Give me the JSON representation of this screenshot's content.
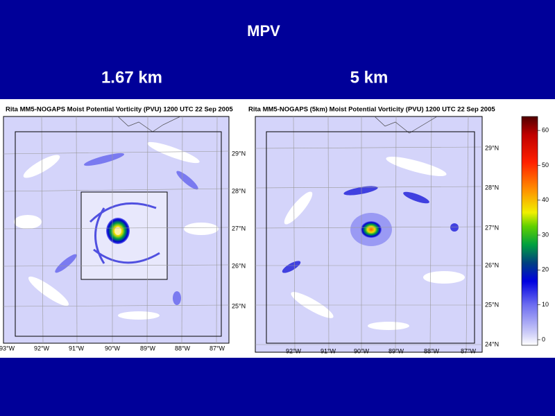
{
  "title": "MPV",
  "panels": [
    {
      "subtitle": "1.67 km",
      "plot_title": "Rita MM5-NOGAPS Moist Potential Vorticity (PVU) 1200 UTC 22 Sep 2005",
      "lat_labels": [
        "29°N",
        "28°N",
        "27°N",
        "26°N",
        "25°N"
      ],
      "lon_labels": [
        "93°W",
        "92°W",
        "91°W",
        "90°W",
        "89°W",
        "88°W",
        "87°W"
      ]
    },
    {
      "subtitle": "5 km",
      "plot_title": "Rita MM5-NOGAPS (5km) Moist Potential Vorticity (PVU) 1200 UTC 22 Sep 2005",
      "lat_labels": [
        "29°N",
        "28°N",
        "27°N",
        "26°N",
        "25°N",
        "24°N"
      ],
      "lon_labels": [
        "92°W",
        "91°W",
        "90°W",
        "89°W",
        "88°W",
        "87°W"
      ]
    }
  ],
  "colorbar": {
    "lim": [
      -1.6,
      64
    ],
    "ticks": [
      0,
      10,
      20,
      30,
      40,
      50,
      60
    ]
  }
}
